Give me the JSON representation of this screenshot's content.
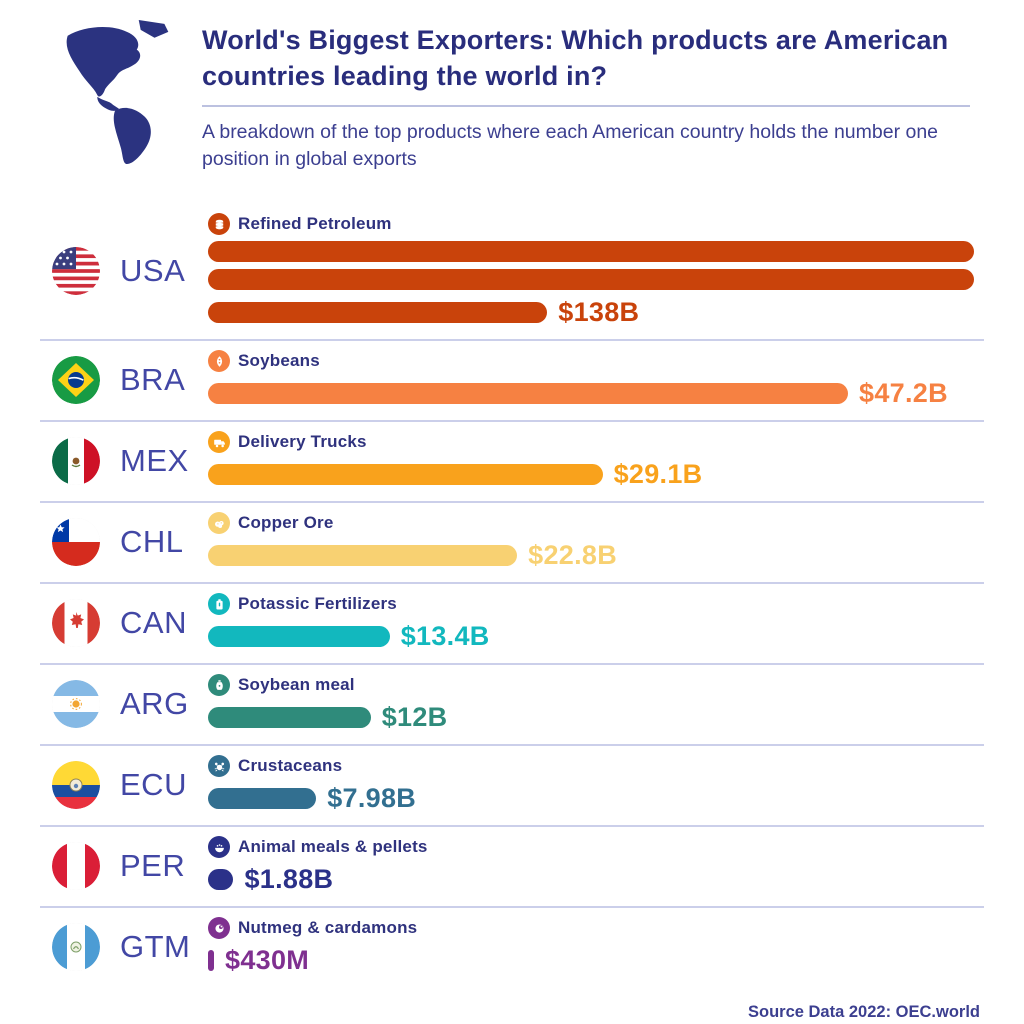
{
  "header": {
    "title_lead": "World's Biggest Exporters: ",
    "title_rest": "Which products are American countries leading the world in?",
    "subtitle": "A breakdown of the top products where each American country holds the number one position in global exports",
    "logo_icon": "americas-map-icon",
    "brand_color": "#2B3380"
  },
  "footer": {
    "source": "Source Data 2022: OEC.world"
  },
  "chart_data": {
    "type": "bar",
    "orientation": "horizontal",
    "unit": "USD billions",
    "title": "World's Biggest Exporters: Which products are American countries leading the world in?",
    "source": "Source Data 2022: OEC.world",
    "note": "Bars wrap to multiple lines when exceeding chart width (USA).",
    "rows": [
      {
        "code": "USA",
        "product": "Refined Petroleum",
        "value_label": "$138B",
        "value_billions": 138,
        "color": "#C9430B",
        "icon": "oil-barrel-icon",
        "flag": "usa-flag-icon"
      },
      {
        "code": "BRA",
        "product": "Soybeans",
        "value_label": "$47.2B",
        "value_billions": 47.2,
        "color": "#F68142",
        "icon": "soybean-icon",
        "flag": "brazil-flag-icon"
      },
      {
        "code": "MEX",
        "product": "Delivery Trucks",
        "value_label": "$29.1B",
        "value_billions": 29.1,
        "color": "#F9A21C",
        "icon": "delivery-truck-icon",
        "flag": "mexico-flag-icon"
      },
      {
        "code": "CHL",
        "product": "Copper Ore",
        "value_label": "$22.8B",
        "value_billions": 22.8,
        "color": "#F8D172",
        "icon": "copper-ore-icon",
        "flag": "chile-flag-icon"
      },
      {
        "code": "CAN",
        "product": "Potassic Fertilizers",
        "value_label": "$13.4B",
        "value_billions": 13.4,
        "color": "#12B8BE",
        "icon": "fertilizer-bag-icon",
        "flag": "canada-flag-icon"
      },
      {
        "code": "ARG",
        "product": "Soybean meal",
        "value_label": "$12B",
        "value_billions": 12,
        "color": "#2F8B7B",
        "icon": "meal-sack-icon",
        "flag": "argentina-flag-icon"
      },
      {
        "code": "ECU",
        "product": "Crustaceans",
        "value_label": "$7.98B",
        "value_billions": 7.98,
        "color": "#326F90",
        "icon": "crab-icon",
        "flag": "ecuador-flag-icon"
      },
      {
        "code": "PER",
        "product": "Animal meals & pellets",
        "value_label": "$1.88B",
        "value_billions": 1.88,
        "color": "#2B3189",
        "icon": "animal-feed-icon",
        "flag": "peru-flag-icon"
      },
      {
        "code": "GTM",
        "product": "Nutmeg & cardamons",
        "value_label": "$430M",
        "value_billions": 0.43,
        "color": "#7F3090",
        "icon": "nutmeg-icon",
        "flag": "guatemala-flag-icon"
      }
    ]
  }
}
